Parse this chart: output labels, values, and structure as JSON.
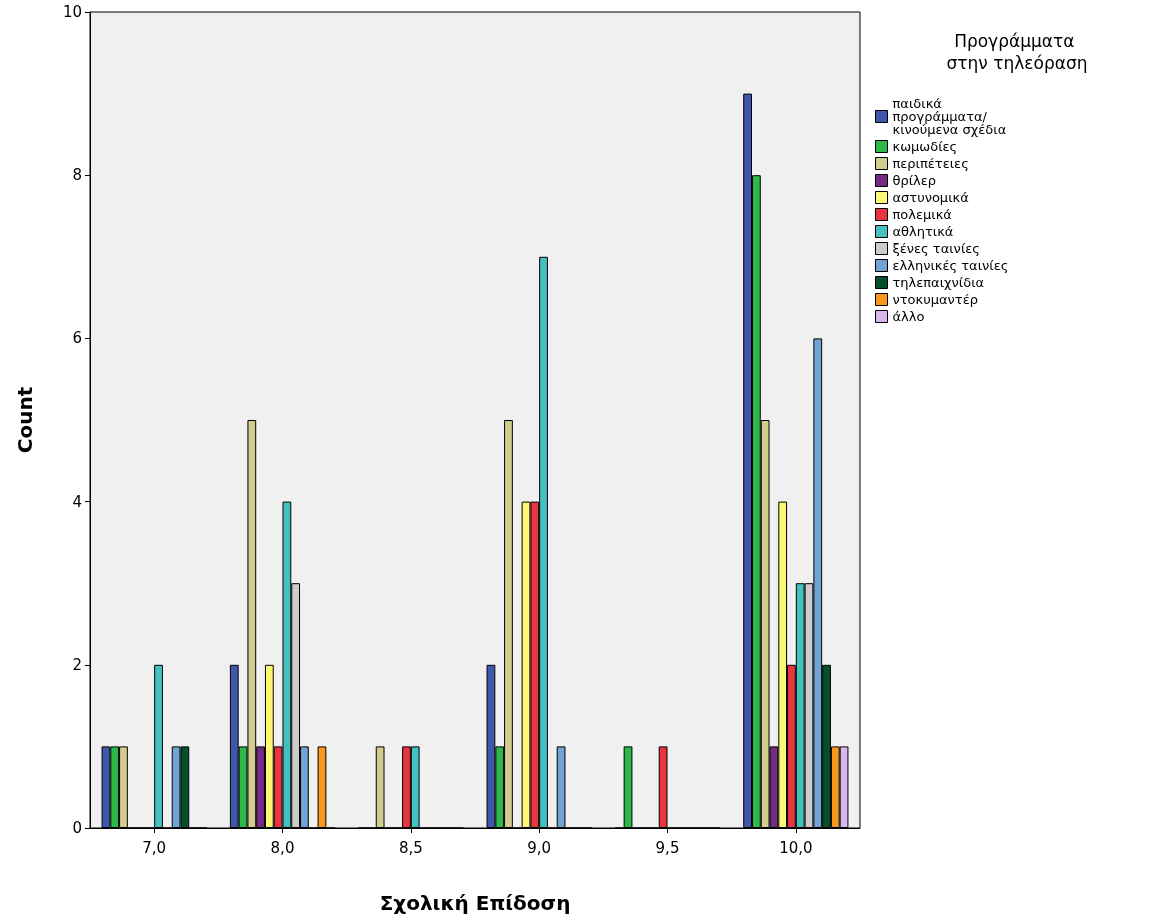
{
  "chart_data": {
    "type": "bar",
    "xlabel": "Σχολική Επίδοση",
    "ylabel": "Count",
    "legend_title": "Προγράμματα στην τηλεόραση",
    "categories": [
      "7,0",
      "8,0",
      "8,5",
      "9,0",
      "9,5",
      "10,0"
    ],
    "series": [
      {
        "name": "παιδικά προγράμματα/κινούμενα σχέδια",
        "color": "#3e58ac",
        "values": [
          1,
          2,
          0,
          2,
          0,
          9
        ]
      },
      {
        "name": "κωμωδίες",
        "color": "#2eb848",
        "values": [
          1,
          1,
          0,
          1,
          1,
          8
        ]
      },
      {
        "name": "περιπέτειες",
        "color": "#d2cc8e",
        "values": [
          1,
          5,
          1,
          5,
          0,
          5
        ]
      },
      {
        "name": "θρίλερ",
        "color": "#752a83",
        "values": [
          0,
          1,
          0,
          0,
          0,
          1
        ]
      },
      {
        "name": "αστυνομικά",
        "color": "#fbf873",
        "values": [
          0,
          2,
          0,
          4,
          0,
          4
        ]
      },
      {
        "name": "πολεμικά",
        "color": "#e8353e",
        "values": [
          0,
          1,
          1,
          4,
          1,
          2
        ]
      },
      {
        "name": "αθλητικά",
        "color": "#45c0c1",
        "values": [
          2,
          4,
          1,
          7,
          0,
          3
        ]
      },
      {
        "name": "ξένες ταινίες",
        "color": "#cccccc",
        "values": [
          0,
          3,
          0,
          0,
          0,
          3
        ]
      },
      {
        "name": "ελληνικές ταινίες",
        "color": "#71a3d5",
        "values": [
          1,
          1,
          0,
          1,
          0,
          6
        ]
      },
      {
        "name": "τηλεπαιχνίδια",
        "color": "#054f2a",
        "values": [
          1,
          0,
          0,
          0,
          0,
          2
        ]
      },
      {
        "name": "ντοκυμαντέρ",
        "color": "#f8981d",
        "values": [
          0,
          1,
          0,
          0,
          0,
          1
        ]
      },
      {
        "name": "άλλο",
        "color": "#d9b7ec",
        "values": [
          0,
          0,
          0,
          0,
          0,
          1
        ]
      }
    ],
    "ylim": [
      0,
      10
    ],
    "yticks": [
      0,
      2,
      4,
      6,
      8,
      10
    ],
    "grid": false,
    "legend": "right"
  }
}
